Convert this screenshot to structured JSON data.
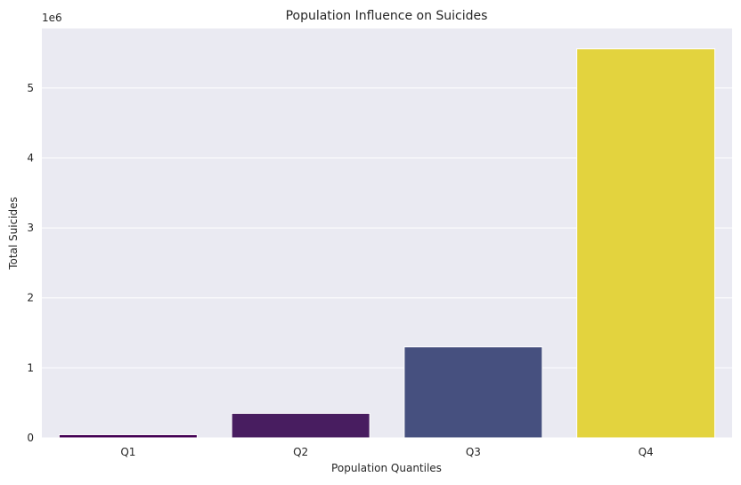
{
  "chart_data": {
    "type": "bar",
    "title": "Population Influence on Suicides",
    "xlabel": "Population Quantiles",
    "ylabel": "Total Suicides",
    "y_scale_label": "1e6",
    "categories": [
      "Q1",
      "Q2",
      "Q3",
      "Q4"
    ],
    "values": [
      45000,
      350000,
      1300000,
      5560000
    ],
    "colors": [
      "#440154",
      "#481d60",
      "#46507f",
      "#e3d33e"
    ],
    "ylim": [
      0,
      5850000
    ],
    "yticks": [
      0,
      1000000,
      2000000,
      3000000,
      4000000,
      5000000
    ],
    "ytick_labels": [
      "0",
      "1",
      "2",
      "3",
      "4",
      "5"
    ],
    "grid": true,
    "background": "#eaeaf2"
  }
}
